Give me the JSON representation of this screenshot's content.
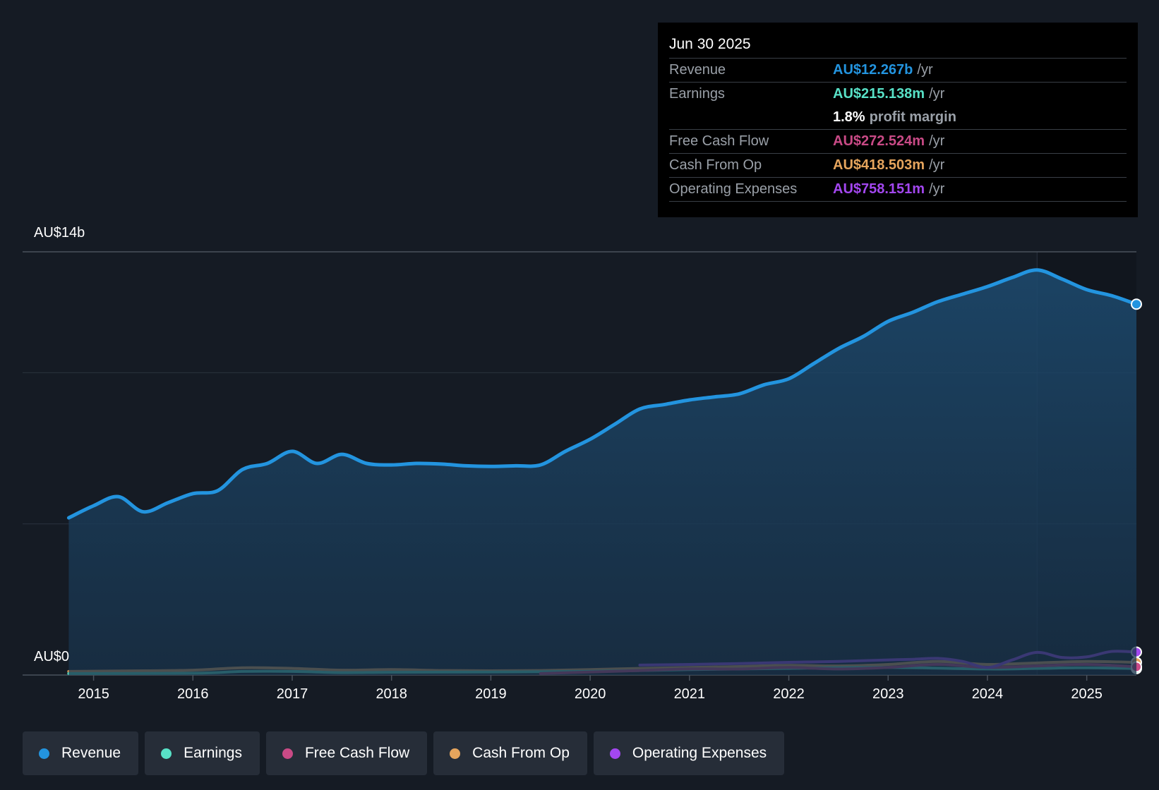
{
  "chart_data": {
    "type": "area",
    "y_axis": {
      "top_label": "AU$14b",
      "bottom_label": "AU$0",
      "ylim": [
        0,
        14
      ]
    },
    "x_ticks": [
      "2015",
      "2016",
      "2017",
      "2018",
      "2019",
      "2020",
      "2021",
      "2022",
      "2023",
      "2024",
      "2025"
    ],
    "xlim": [
      2014.74,
      2025.5
    ],
    "highlight_start": 2024.5,
    "series": [
      {
        "name": "Revenue",
        "color": "#2394df",
        "fill": true,
        "end_marker": true,
        "x": [
          2014.75,
          2015.0,
          2015.25,
          2015.5,
          2015.75,
          2016.0,
          2016.25,
          2016.5,
          2016.75,
          2017.0,
          2017.25,
          2017.5,
          2017.75,
          2018.0,
          2018.25,
          2018.5,
          2018.75,
          2019.0,
          2019.25,
          2019.5,
          2019.75,
          2020.0,
          2020.25,
          2020.5,
          2020.75,
          2021.0,
          2021.25,
          2021.5,
          2021.75,
          2022.0,
          2022.25,
          2022.5,
          2022.75,
          2023.0,
          2023.25,
          2023.5,
          2023.75,
          2024.0,
          2024.25,
          2024.5,
          2024.75,
          2025.0,
          2025.25,
          2025.5
        ],
        "values": [
          5.2,
          5.6,
          5.9,
          5.4,
          5.7,
          6.0,
          6.1,
          6.8,
          7.0,
          7.4,
          7.0,
          7.3,
          7.0,
          6.95,
          7.0,
          6.98,
          6.92,
          6.9,
          6.92,
          6.95,
          7.4,
          7.8,
          8.3,
          8.8,
          8.95,
          9.1,
          9.2,
          9.3,
          9.6,
          9.8,
          10.3,
          10.8,
          11.2,
          11.7,
          12.0,
          12.35,
          12.6,
          12.85,
          13.15,
          13.4,
          13.1,
          12.75,
          12.55,
          12.267
        ]
      },
      {
        "name": "Earnings",
        "color": "#58e1c7",
        "fill": false,
        "end_marker": true,
        "x": [
          2014.75,
          2016.0,
          2016.5,
          2017.0,
          2017.5,
          2018.0,
          2019.0,
          2020.0,
          2021.0,
          2022.0,
          2023.0,
          2024.0,
          2024.5,
          2025.0,
          2025.5
        ],
        "values": [
          0.05,
          0.06,
          0.12,
          0.12,
          0.08,
          0.09,
          0.1,
          0.12,
          0.18,
          0.22,
          0.25,
          0.2,
          0.22,
          0.24,
          0.215
        ]
      },
      {
        "name": "Free Cash Flow",
        "color": "#c94a86",
        "fill": false,
        "end_marker": true,
        "x": [
          2019.5,
          2020.0,
          2020.5,
          2021.0,
          2021.5,
          2022.0,
          2022.5,
          2023.0,
          2023.5,
          2024.0,
          2024.5,
          2025.0,
          2025.5
        ],
        "values": [
          0.05,
          0.1,
          0.15,
          0.2,
          0.2,
          0.25,
          0.2,
          0.25,
          0.35,
          0.25,
          0.3,
          0.35,
          0.2725
        ]
      },
      {
        "name": "Cash From Op",
        "color": "#e6a55d",
        "fill": false,
        "end_marker": true,
        "x": [
          2014.75,
          2015.5,
          2016.0,
          2016.5,
          2017.0,
          2017.5,
          2018.0,
          2018.5,
          2019.0,
          2019.5,
          2020.0,
          2020.5,
          2021.0,
          2021.5,
          2022.0,
          2022.5,
          2023.0,
          2023.5,
          2024.0,
          2024.5,
          2025.0,
          2025.5
        ],
        "values": [
          0.12,
          0.14,
          0.16,
          0.24,
          0.22,
          0.16,
          0.18,
          0.15,
          0.14,
          0.15,
          0.18,
          0.22,
          0.25,
          0.28,
          0.32,
          0.3,
          0.35,
          0.45,
          0.35,
          0.4,
          0.45,
          0.4185
        ]
      },
      {
        "name": "Operating Expenses",
        "color": "#a347f0",
        "fill": false,
        "end_marker": true,
        "x": [
          2020.5,
          2021.0,
          2021.5,
          2022.0,
          2022.5,
          2023.0,
          2023.25,
          2023.5,
          2023.75,
          2024.0,
          2024.25,
          2024.5,
          2024.75,
          2025.0,
          2025.25,
          2025.5
        ],
        "values": [
          0.33,
          0.35,
          0.38,
          0.42,
          0.45,
          0.5,
          0.52,
          0.55,
          0.45,
          0.25,
          0.5,
          0.75,
          0.58,
          0.6,
          0.78,
          0.758
        ]
      }
    ]
  },
  "tooltip": {
    "date": "Jun 30 2025",
    "unit": "/yr",
    "rows": [
      {
        "label": "Revenue",
        "value": "AU$12.267b",
        "color": "#2394df"
      },
      {
        "label": "Earnings",
        "value": "AU$215.138m",
        "color": "#58e1c7"
      },
      {
        "label": "Free Cash Flow",
        "value": "AU$272.524m",
        "color": "#c94a86"
      },
      {
        "label": "Cash From Op",
        "value": "AU$418.503m",
        "color": "#e6a55d"
      },
      {
        "label": "Operating Expenses",
        "value": "AU$758.151m",
        "color": "#a347f0"
      }
    ],
    "margin_value": "1.8%",
    "margin_text": "profit margin"
  },
  "legend": [
    {
      "label": "Revenue",
      "color": "#2394df"
    },
    {
      "label": "Earnings",
      "color": "#58e1c7"
    },
    {
      "label": "Free Cash Flow",
      "color": "#c94a86"
    },
    {
      "label": "Cash From Op",
      "color": "#e6a55d"
    },
    {
      "label": "Operating Expenses",
      "color": "#a347f0"
    }
  ]
}
